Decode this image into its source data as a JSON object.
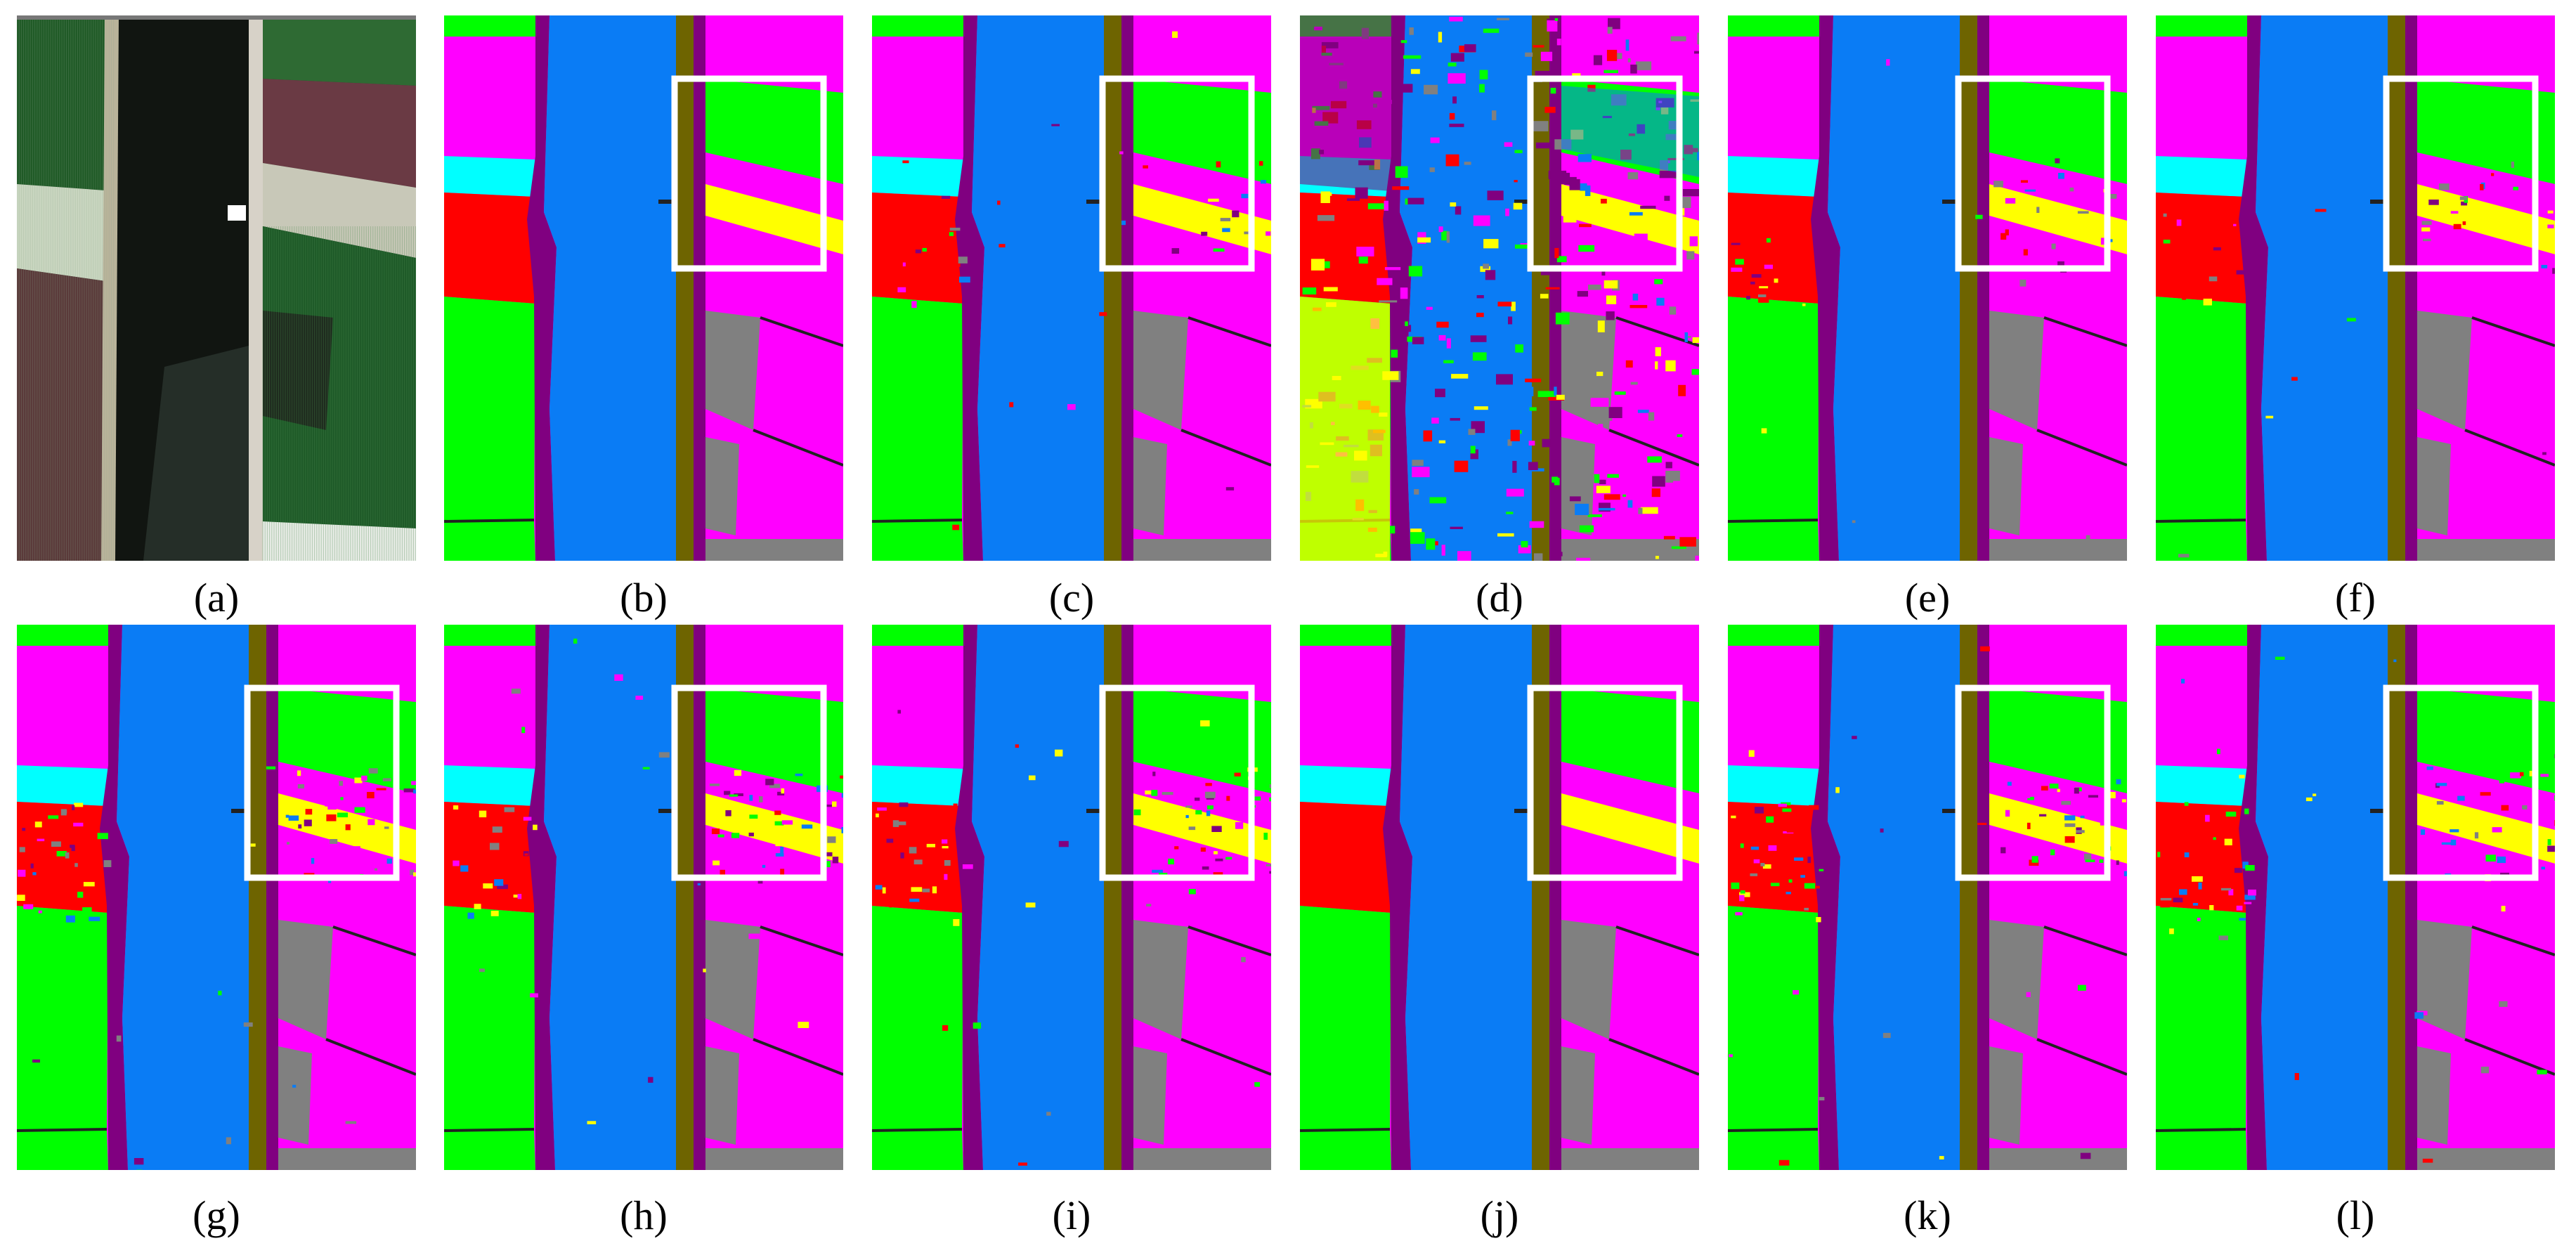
{
  "figure": {
    "panels": [
      {
        "label": "(a)",
        "kind": "rgb"
      },
      {
        "label": "(b)",
        "kind": "map",
        "noise": 0
      },
      {
        "label": "(c)",
        "kind": "map",
        "noise": 1
      },
      {
        "label": "(d)",
        "kind": "map",
        "noise": 3
      },
      {
        "label": "(e)",
        "kind": "map",
        "noise": 1
      },
      {
        "label": "(f)",
        "kind": "map",
        "noise": 1
      },
      {
        "label": "(g)",
        "kind": "map",
        "noise": 2
      },
      {
        "label": "(h)",
        "kind": "map",
        "noise": 2
      },
      {
        "label": "(i)",
        "kind": "map",
        "noise": 2
      },
      {
        "label": "(j)",
        "kind": "map",
        "noise": 0
      },
      {
        "label": "(k)",
        "kind": "map",
        "noise": 2
      },
      {
        "label": "(l)",
        "kind": "map",
        "noise": 2
      }
    ],
    "class_colors": {
      "water": "#0a7cf5",
      "field_magenta": "#ff00ff",
      "field_green": "#00ff00",
      "field_red": "#ff0000",
      "field_cyan": "#00ffff",
      "field_yellow": "#ffff00",
      "field_gray": "#808080",
      "bank_olive": "#6e6400",
      "bank_purple": "#800080",
      "boundary": "#222222"
    },
    "highlight_box_color": "#ffffff"
  }
}
